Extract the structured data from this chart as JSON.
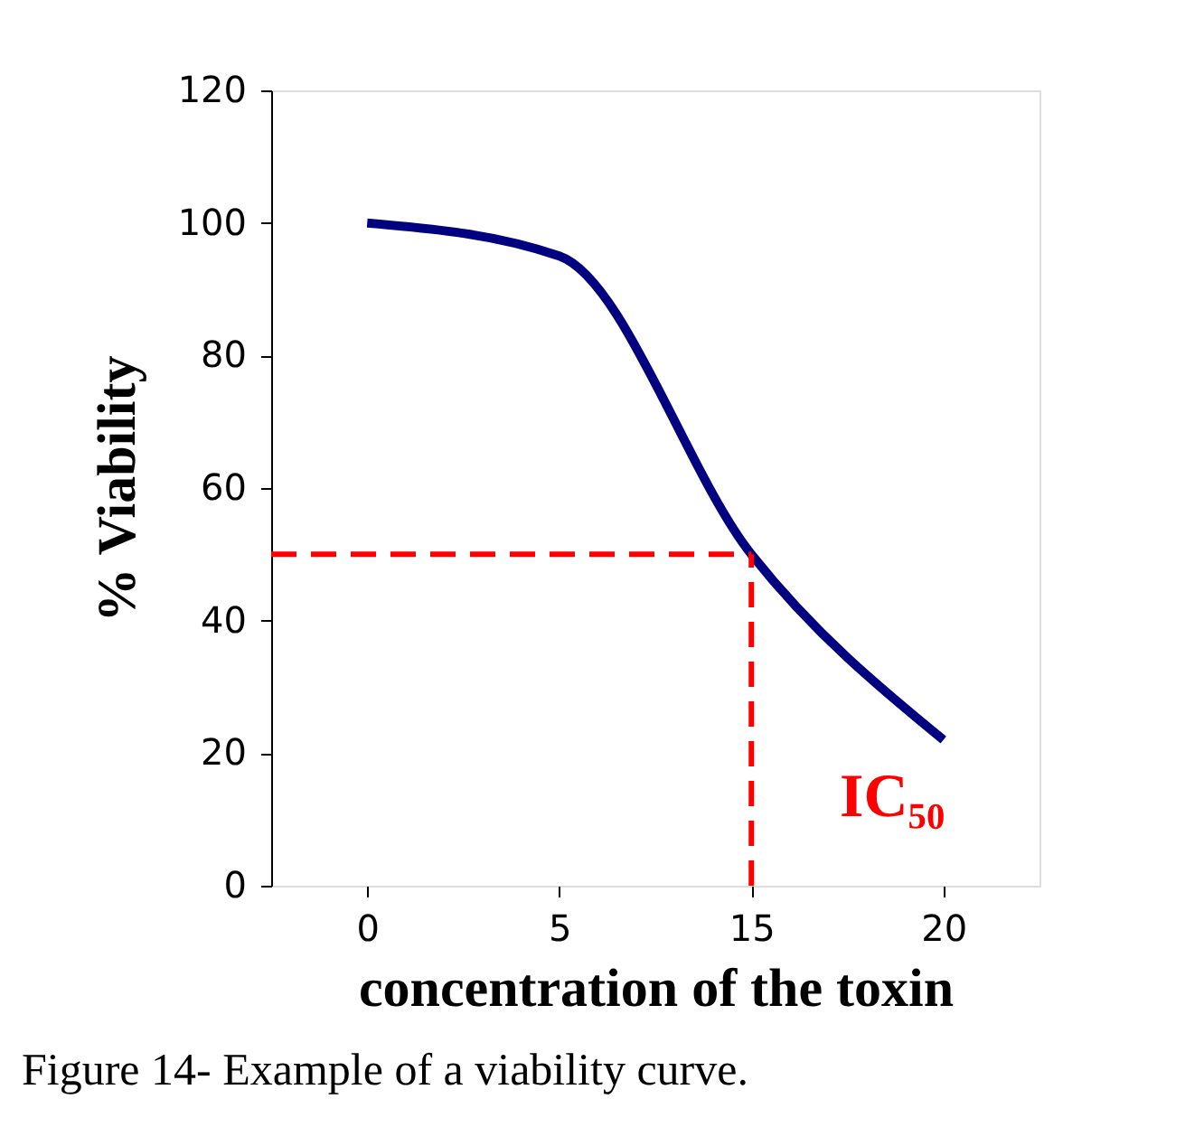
{
  "chart_data": {
    "type": "line",
    "xlabel": "concentration of the toxin",
    "ylabel": "% Viability",
    "categories": [
      "0",
      "5",
      "15",
      "20"
    ],
    "series": [
      {
        "color": "#000080",
        "values": [
          100,
          95,
          50,
          22
        ]
      }
    ],
    "ylim": [
      0,
      120
    ],
    "yticks": [
      0,
      20,
      40,
      60,
      80,
      100,
      120
    ],
    "grid": false,
    "marker": "none",
    "line_style": "solid",
    "ref_lines": [
      {
        "axis": "y",
        "value": 50,
        "color": "#ff0000",
        "line_style": "dashed"
      },
      {
        "axis": "x",
        "value": "15",
        "color": "#ff0000",
        "line_style": "dashed"
      }
    ],
    "annotations": [
      "IC₅₀",
      "Figure 14- Example of a viability curve."
    ]
  }
}
